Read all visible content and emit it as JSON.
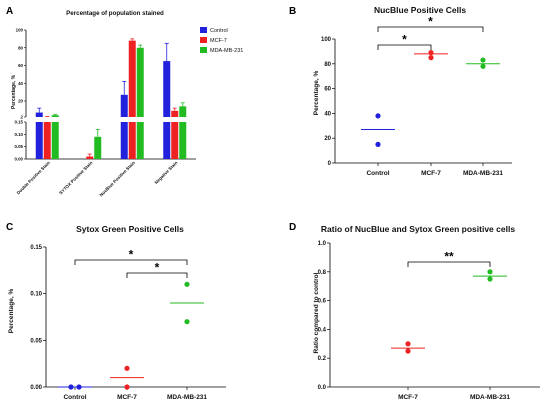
{
  "colors": {
    "Control": "#2222dd",
    "MCF-7": "#ee2222",
    "MDA-MB-231": "#22bb22",
    "axis": "#000000"
  },
  "chart_data": [
    {
      "panel": "A",
      "type": "bar",
      "title": "Percentage of population stained",
      "ylabel": "Percentage, %",
      "categories": [
        "Double Positive Stain",
        "SYTOX Positive Stain",
        "NucBlue Positive Stain",
        "Negative Stain"
      ],
      "series": [
        {
          "name": "Control",
          "values": [
            7,
            0,
            27,
            65
          ],
          "errors": [
            5,
            0,
            15,
            20
          ]
        },
        {
          "name": "MCF-7",
          "values": [
            2,
            0.01,
            88,
            9
          ],
          "errors": [
            0.5,
            0.01,
            2,
            3
          ]
        },
        {
          "name": "MDA-MB-231",
          "values": [
            4,
            0.09,
            80,
            14
          ],
          "errors": [
            1,
            0.03,
            3,
            4
          ]
        }
      ],
      "y_break": {
        "lower_range": [
          0,
          0.15
        ],
        "upper_range": [
          2,
          100
        ]
      },
      "lower_ticks": [
        "0.00",
        "0.05",
        "0.10",
        "0.15"
      ],
      "upper_ticks": [
        "2",
        "20",
        "40",
        "60",
        "80",
        "100"
      ],
      "legend": [
        "Control",
        "MCF-7",
        "MDA-MB-231"
      ],
      "legend_position": "top-right"
    },
    {
      "panel": "B",
      "type": "scatter",
      "title": "NucBlue Positive Cells",
      "ylabel": "Percentage, %",
      "ylim": [
        0,
        100
      ],
      "yticks": [
        "0",
        "20",
        "40",
        "60",
        "80",
        "100"
      ],
      "categories": [
        "Control",
        "MCF-7",
        "MDA-MB-231"
      ],
      "points": [
        [
          38,
          15
        ],
        [
          89,
          85
        ],
        [
          83,
          78
        ]
      ],
      "means": [
        27,
        88,
        80
      ],
      "significance": [
        {
          "from": 0,
          "to": 1,
          "label": "*"
        },
        {
          "from": 0,
          "to": 2,
          "label": "*"
        }
      ]
    },
    {
      "panel": "C",
      "type": "scatter",
      "title": "Sytox Green Positive Cells",
      "ylabel": "Percentage, %",
      "ylim": [
        0,
        0.15
      ],
      "yticks": [
        "0.00",
        "0.05",
        "0.10",
        "0.15"
      ],
      "categories": [
        "Control",
        "MCF-7",
        "MDA-MB-231"
      ],
      "points": [
        [
          0,
          0
        ],
        [
          0.02,
          0
        ],
        [
          0.11,
          0.07
        ]
      ],
      "means": [
        0,
        0.01,
        0.09
      ],
      "significance": [
        {
          "from": 0,
          "to": 2,
          "label": "*"
        },
        {
          "from": 1,
          "to": 2,
          "label": "*"
        }
      ]
    },
    {
      "panel": "D",
      "type": "scatter",
      "title": "Ratio of NucBlue and Sytox Green positive cells",
      "ylabel": "Ratio compared to control",
      "ylim": [
        0,
        1.0
      ],
      "yticks": [
        "0.0",
        "0.2",
        "0.4",
        "0.6",
        "0.8",
        "1.0"
      ],
      "categories": [
        "MCF-7",
        "MDA-MB-231"
      ],
      "points": [
        [
          0.3,
          0.25
        ],
        [
          0.8,
          0.75
        ]
      ],
      "means": [
        0.27,
        0.77
      ],
      "significance": [
        {
          "from": 0,
          "to": 1,
          "label": "**"
        }
      ]
    }
  ]
}
